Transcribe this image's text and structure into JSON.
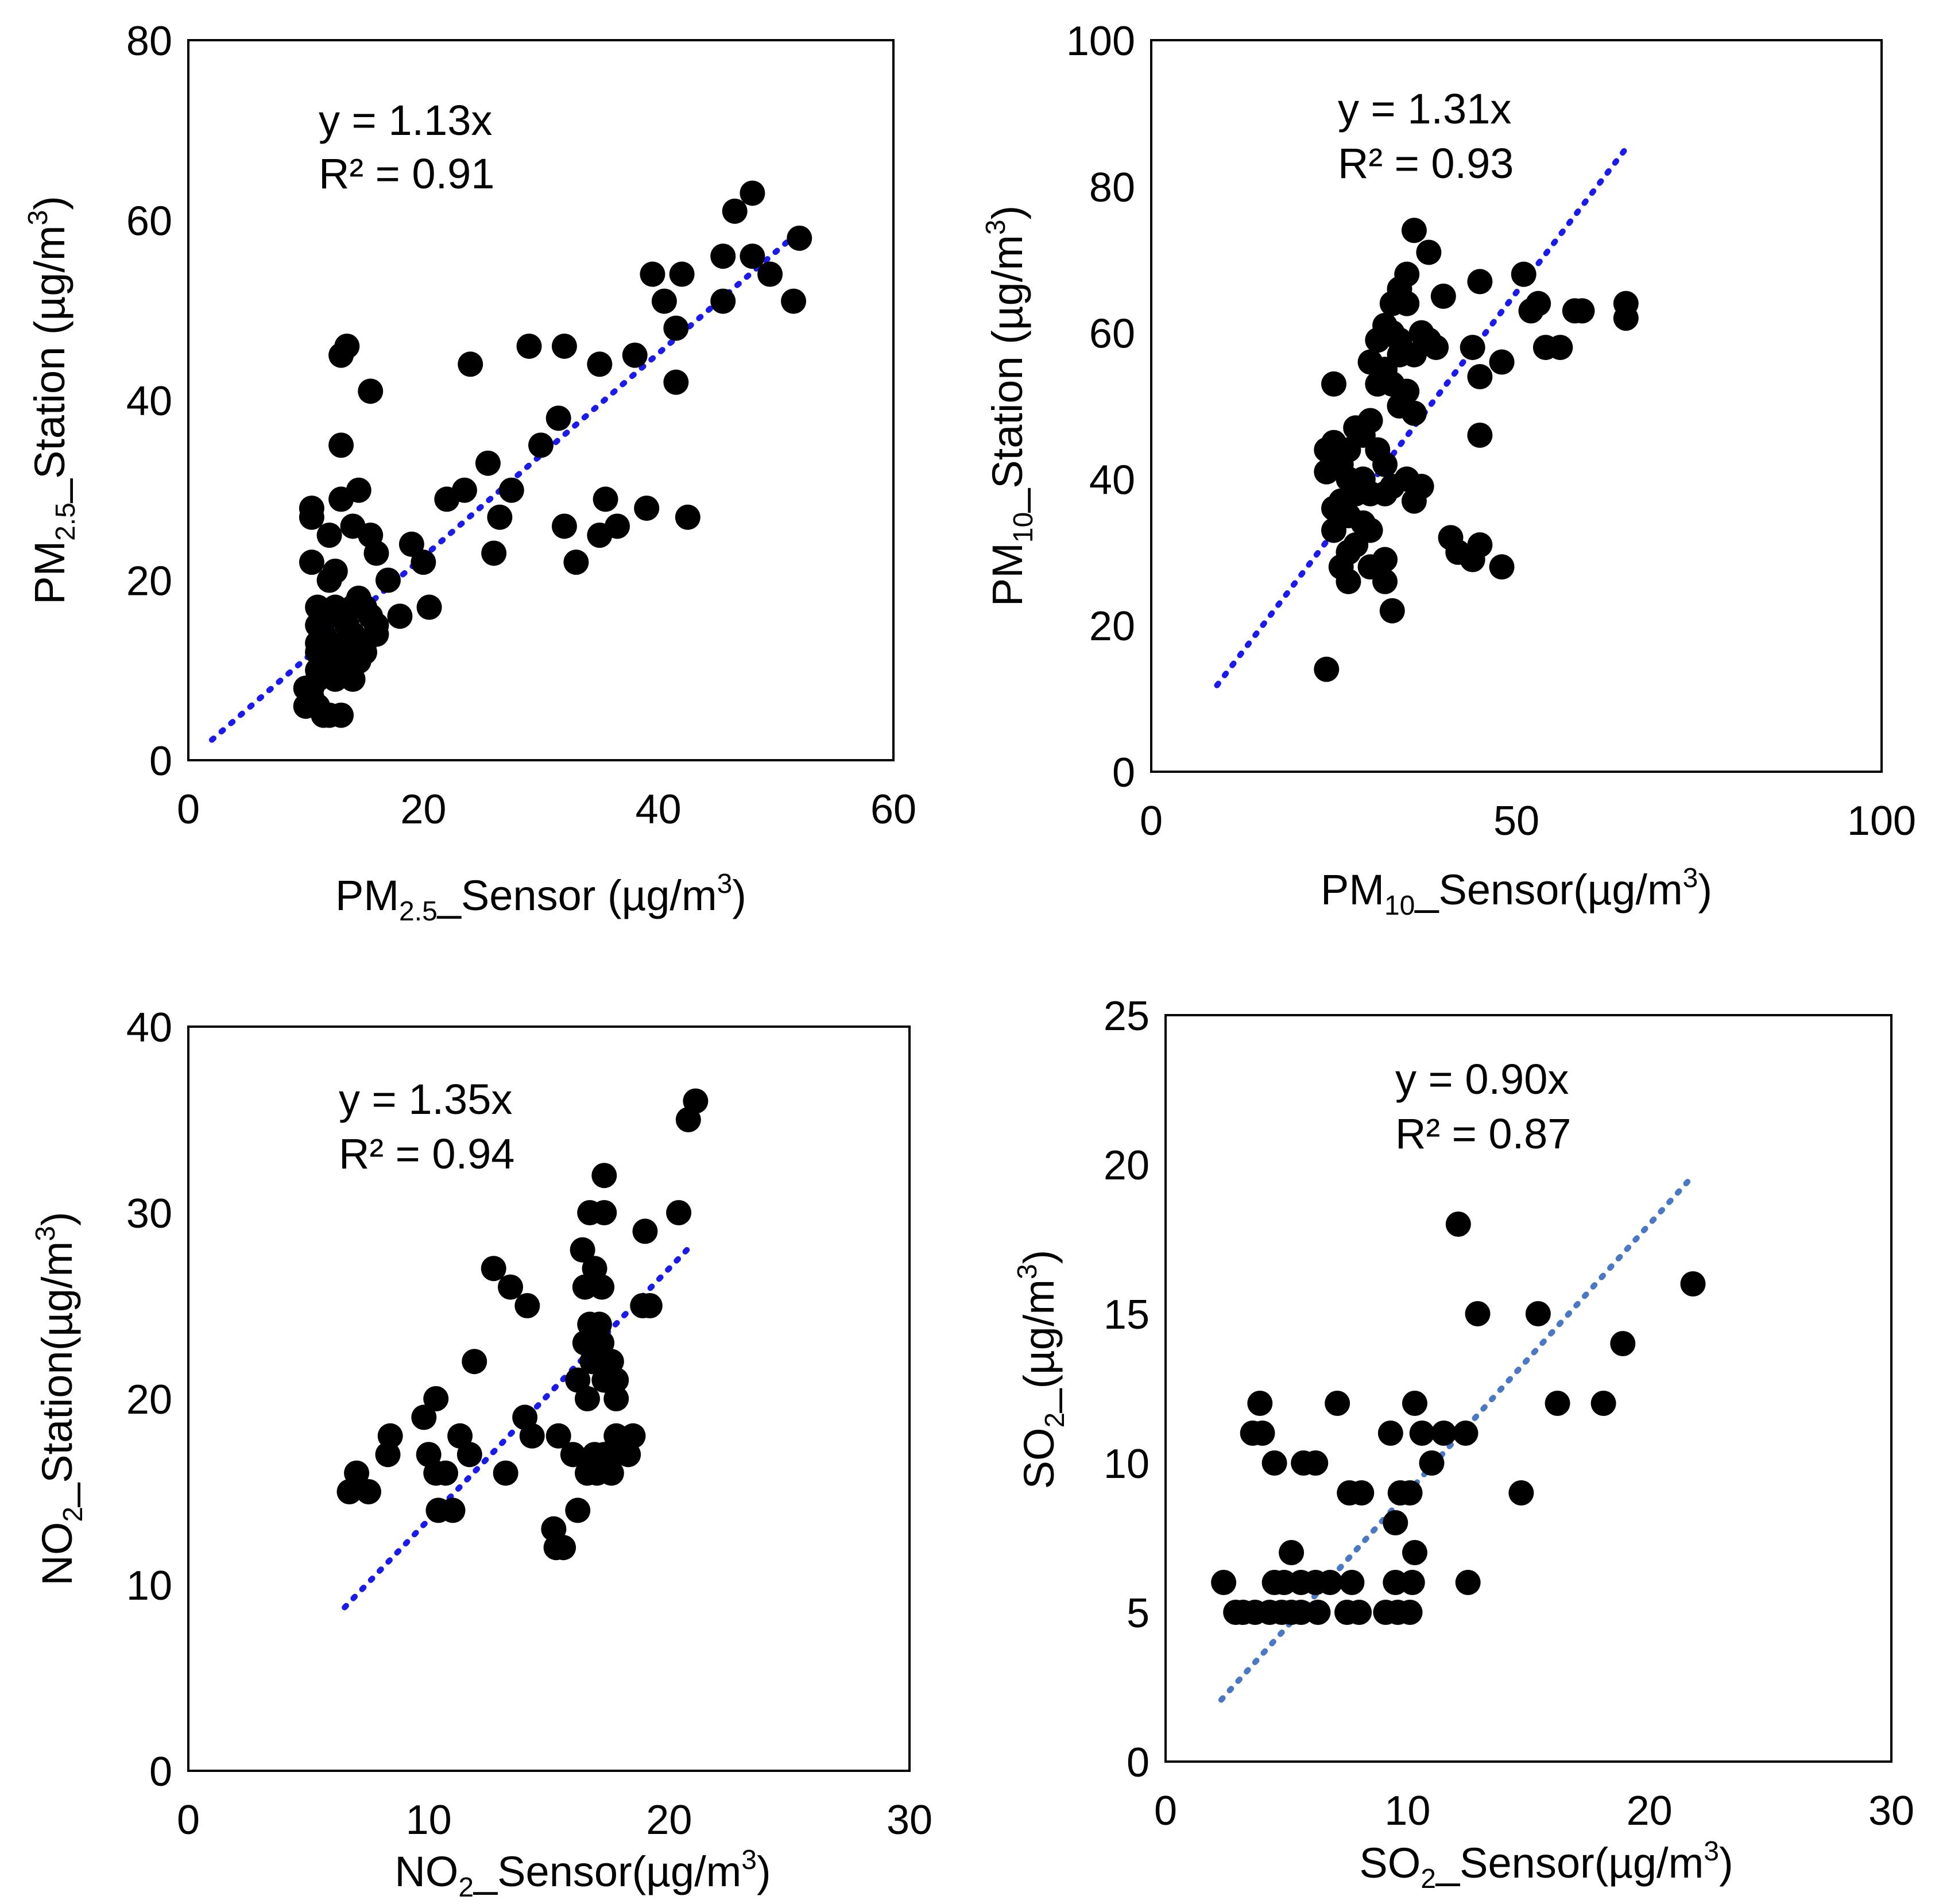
{
  "chart_data": [
    {
      "type": "scatter",
      "equation": "y = 1.13x",
      "r2": "R² = 0.91",
      "xlabel": {
        "base": "PM",
        "sub": "2.5",
        "rest": "_Sensor (µg/m",
        "sup": "3",
        "end": ")"
      },
      "ylabel": {
        "base": "PM",
        "sub": "2.5",
        "rest": "_Station (µg/m",
        "sup": "3",
        "end": ")"
      },
      "xlim": [
        0,
        60
      ],
      "ylim": [
        0,
        80
      ],
      "xticks": [
        "0",
        "20",
        "40",
        "60"
      ],
      "yticks": [
        "0",
        "20",
        "40",
        "60",
        "80"
      ],
      "trendline": {
        "x": [
          2,
          52
        ],
        "y": [
          2.26,
          58.76
        ],
        "color": "#1a1aee"
      },
      "marker_color": "#000000",
      "points": [
        [
          46.5,
          61
        ],
        [
          48,
          63
        ],
        [
          52,
          58
        ],
        [
          45.5,
          56
        ],
        [
          48,
          56
        ],
        [
          49.5,
          54
        ],
        [
          51.5,
          51
        ],
        [
          45.5,
          51
        ],
        [
          39.5,
          54
        ],
        [
          42,
          54
        ],
        [
          40.5,
          51
        ],
        [
          41.5,
          48
        ],
        [
          41.5,
          42
        ],
        [
          38,
          45
        ],
        [
          35,
          44
        ],
        [
          29,
          46
        ],
        [
          32,
          46
        ],
        [
          24,
          44
        ],
        [
          31.5,
          38
        ],
        [
          30,
          35
        ],
        [
          32,
          26
        ],
        [
          33,
          22
        ],
        [
          35,
          25
        ],
        [
          35.5,
          29
        ],
        [
          36.5,
          26
        ],
        [
          39,
          28
        ],
        [
          42.5,
          27
        ],
        [
          22,
          29
        ],
        [
          23.5,
          30
        ],
        [
          25.5,
          33
        ],
        [
          26.5,
          27
        ],
        [
          27.5,
          30
        ],
        [
          26,
          23
        ],
        [
          20,
          22
        ],
        [
          19,
          24
        ],
        [
          20.5,
          17
        ],
        [
          18,
          16
        ],
        [
          17,
          20
        ],
        [
          13,
          45
        ],
        [
          13.5,
          46
        ],
        [
          15.5,
          41
        ],
        [
          13,
          35
        ],
        [
          13,
          29
        ],
        [
          14.5,
          30
        ],
        [
          14,
          26
        ],
        [
          15.5,
          25
        ],
        [
          16,
          23
        ],
        [
          10.5,
          28
        ],
        [
          10.5,
          27
        ],
        [
          12,
          25
        ],
        [
          10.5,
          22
        ],
        [
          12,
          20
        ],
        [
          12.5,
          21
        ],
        [
          11,
          17
        ],
        [
          11,
          15
        ],
        [
          11.5,
          14
        ],
        [
          12,
          16
        ],
        [
          12.5,
          17
        ],
        [
          13,
          16
        ],
        [
          13.5,
          15
        ],
        [
          14,
          17
        ],
        [
          14.5,
          18
        ],
        [
          15,
          17
        ],
        [
          15.5,
          16
        ],
        [
          16,
          14
        ],
        [
          14,
          14
        ],
        [
          13.5,
          13
        ],
        [
          13,
          12
        ],
        [
          12.5,
          12
        ],
        [
          12,
          11
        ],
        [
          11.5,
          12
        ],
        [
          11,
          12
        ],
        [
          11,
          13
        ],
        [
          14.5,
          11
        ],
        [
          15,
          12
        ],
        [
          14,
          9
        ],
        [
          12.5,
          9
        ],
        [
          12,
          10
        ],
        [
          11,
          9
        ],
        [
          10.5,
          8
        ],
        [
          10,
          8
        ],
        [
          10,
          6
        ],
        [
          10.5,
          7
        ],
        [
          11,
          6
        ],
        [
          11.5,
          5
        ],
        [
          12,
          5
        ],
        [
          13,
          5
        ],
        [
          11,
          10
        ],
        [
          12,
          13
        ],
        [
          13,
          10
        ],
        [
          15,
          13
        ],
        [
          16,
          15
        ]
      ]
    },
    {
      "type": "scatter",
      "equation": "y = 1.31x",
      "r2": "R² = 0.93",
      "xlabel": {
        "base": "PM",
        "sub": "10",
        "rest": "_Sensor(µg/m",
        "sup": "3",
        "end": ")"
      },
      "ylabel": {
        "base": "PM",
        "sub": "10",
        "rest": "_Station (µg/m",
        "sup": "3",
        "end": ")"
      },
      "xlim": [
        0,
        100
      ],
      "ylim": [
        0,
        100
      ],
      "xticks": [
        "0",
        "50",
        "100"
      ],
      "yticks": [
        "0",
        "20",
        "40",
        "60",
        "80",
        "100"
      ],
      "trendline": {
        "x": [
          9,
          65
        ],
        "y": [
          11.8,
          85.2
        ],
        "color": "#1a1aee"
      },
      "marker_color": "#000000",
      "points": [
        [
          36,
          74
        ],
        [
          38,
          71
        ],
        [
          35,
          68
        ],
        [
          34,
          66
        ],
        [
          33,
          64
        ],
        [
          35,
          64
        ],
        [
          51,
          68
        ],
        [
          45,
          67
        ],
        [
          40,
          65
        ],
        [
          52,
          63
        ],
        [
          53,
          64
        ],
        [
          58,
          63
        ],
        [
          59,
          63
        ],
        [
          65,
          64
        ],
        [
          65,
          62
        ],
        [
          54,
          58
        ],
        [
          56,
          58
        ],
        [
          48,
          56
        ],
        [
          44,
          58
        ],
        [
          45,
          54
        ],
        [
          32,
          61
        ],
        [
          33,
          60
        ],
        [
          31,
          59
        ],
        [
          34,
          59
        ],
        [
          37,
          60
        ],
        [
          38,
          59
        ],
        [
          39,
          58
        ],
        [
          36,
          57
        ],
        [
          34,
          57
        ],
        [
          30,
          56
        ],
        [
          32,
          55
        ],
        [
          33,
          53
        ],
        [
          35,
          52
        ],
        [
          31,
          53
        ],
        [
          34,
          50
        ],
        [
          36,
          49
        ],
        [
          30,
          48
        ],
        [
          28,
          47
        ],
        [
          29,
          46
        ],
        [
          31,
          44
        ],
        [
          25,
          53
        ],
        [
          24,
          44
        ],
        [
          25,
          45
        ],
        [
          27,
          44
        ],
        [
          26,
          42
        ],
        [
          24,
          41
        ],
        [
          27,
          40
        ],
        [
          29,
          40
        ],
        [
          32,
          42
        ],
        [
          33,
          39
        ],
        [
          32,
          38
        ],
        [
          30,
          38
        ],
        [
          28,
          38
        ],
        [
          26,
          37
        ],
        [
          25,
          36
        ],
        [
          27,
          35
        ],
        [
          29,
          34
        ],
        [
          30,
          33
        ],
        [
          28,
          31
        ],
        [
          27,
          30
        ],
        [
          26,
          28
        ],
        [
          27,
          26
        ],
        [
          32,
          29
        ],
        [
          32,
          26
        ],
        [
          30,
          28
        ],
        [
          33,
          22
        ],
        [
          24,
          14
        ],
        [
          37,
          39
        ],
        [
          36,
          37
        ],
        [
          45,
          46
        ],
        [
          41,
          32
        ],
        [
          42,
          30
        ],
        [
          44,
          29
        ],
        [
          45,
          31
        ],
        [
          48,
          28
        ],
        [
          25,
          33
        ],
        [
          35,
          40
        ]
      ]
    },
    {
      "type": "scatter",
      "equation": "y = 1.35x",
      "r2": "R² = 0.94",
      "xlabel": {
        "base": "NO",
        "sub": "2",
        "rest": "_Sensor(µg/m",
        "sup": "3",
        "end": ")"
      },
      "ylabel": {
        "base": "NO",
        "sub": "2",
        "rest": "_Station(µg/m",
        "sup": "3",
        "end": ")"
      },
      "xlim": [
        0,
        30
      ],
      "ylim": [
        0,
        40
      ],
      "xticks": [
        "0",
        "10",
        "20",
        "30"
      ],
      "yticks": [
        "0",
        "10",
        "20",
        "30",
        "40"
      ],
      "trendline": {
        "x": [
          6.5,
          21
        ],
        "y": [
          8.78,
          28.35
        ],
        "color": "#1a1aee"
      },
      "marker_color": "#000000",
      "points": [
        [
          21.1,
          36
        ],
        [
          20.8,
          35
        ],
        [
          20.4,
          30
        ],
        [
          19,
          29
        ],
        [
          17.3,
          32
        ],
        [
          16.7,
          30
        ],
        [
          17.3,
          30
        ],
        [
          16.4,
          28
        ],
        [
          16.9,
          27
        ],
        [
          16.5,
          26
        ],
        [
          17.2,
          26
        ],
        [
          19.2,
          25
        ],
        [
          18.9,
          25
        ],
        [
          16.7,
          24
        ],
        [
          17.1,
          24
        ],
        [
          16.5,
          23
        ],
        [
          17.2,
          23
        ],
        [
          17.6,
          22
        ],
        [
          16.8,
          22
        ],
        [
          17.3,
          21
        ],
        [
          17.8,
          21
        ],
        [
          16.2,
          21
        ],
        [
          16.6,
          20
        ],
        [
          17.8,
          20
        ],
        [
          12.7,
          27
        ],
        [
          13.4,
          26
        ],
        [
          14.1,
          25
        ],
        [
          10.3,
          20
        ],
        [
          9.8,
          19
        ],
        [
          11.9,
          22
        ],
        [
          14.0,
          19
        ],
        [
          14.3,
          18
        ],
        [
          15.4,
          18
        ],
        [
          16.0,
          17
        ],
        [
          16.9,
          17
        ],
        [
          17.7,
          17
        ],
        [
          18.3,
          17
        ],
        [
          18.5,
          18
        ],
        [
          17.8,
          18
        ],
        [
          17.0,
          16
        ],
        [
          17.3,
          17
        ],
        [
          16.6,
          16
        ],
        [
          17.6,
          16
        ],
        [
          8.4,
          18
        ],
        [
          8.3,
          17
        ],
        [
          10.0,
          17
        ],
        [
          11.3,
          18
        ],
        [
          11.7,
          17
        ],
        [
          10.3,
          16
        ],
        [
          10.7,
          16
        ],
        [
          13.2,
          16
        ],
        [
          10.4,
          14
        ],
        [
          11.0,
          14
        ],
        [
          16.2,
          14
        ],
        [
          15.2,
          13
        ],
        [
          15.3,
          12
        ],
        [
          15.6,
          12
        ],
        [
          6.7,
          15
        ],
        [
          7.0,
          16
        ],
        [
          7.5,
          15
        ]
      ]
    },
    {
      "type": "scatter",
      "equation": "y = 0.90x",
      "r2": "R² = 0.87",
      "xlabel": {
        "base": "SO",
        "sub": "2",
        "rest": "_Sensor(µg/m",
        "sup": "3",
        "end": ")"
      },
      "ylabel": {
        "base": "SO",
        "sub": "2",
        "rest": "_(µg/m",
        "sup": "3",
        "end": ")"
      },
      "xlim": [
        0,
        30
      ],
      "ylim": [
        0,
        25
      ],
      "xticks": [
        "0",
        "10",
        "20",
        "30"
      ],
      "yticks": [
        "0",
        "5",
        "10",
        "15",
        "20",
        "25"
      ],
      "trendline": {
        "x": [
          2.3,
          21.6
        ],
        "y": [
          2.07,
          19.44
        ],
        "color": "#4a78c4"
      },
      "marker_color": "#000000",
      "points": [
        [
          12.1,
          18
        ],
        [
          21.8,
          16
        ],
        [
          12.9,
          15
        ],
        [
          15.4,
          15
        ],
        [
          18.9,
          14
        ],
        [
          16.2,
          12
        ],
        [
          18.1,
          12
        ],
        [
          7.1,
          12
        ],
        [
          10.3,
          12
        ],
        [
          3.9,
          12
        ],
        [
          3.6,
          11
        ],
        [
          4.0,
          11
        ],
        [
          9.3,
          11
        ],
        [
          10.6,
          11
        ],
        [
          11.5,
          11
        ],
        [
          12.4,
          11
        ],
        [
          11.0,
          10
        ],
        [
          4.5,
          10
        ],
        [
          5.7,
          10
        ],
        [
          6.2,
          10
        ],
        [
          7.6,
          9
        ],
        [
          8.1,
          9
        ],
        [
          9.7,
          9
        ],
        [
          10.1,
          9
        ],
        [
          14.7,
          9
        ],
        [
          9.5,
          8
        ],
        [
          10.3,
          7
        ],
        [
          5.2,
          7
        ],
        [
          2.4,
          6
        ],
        [
          4.5,
          6
        ],
        [
          4.9,
          6
        ],
        [
          5.6,
          6
        ],
        [
          6.2,
          6
        ],
        [
          6.8,
          6
        ],
        [
          7.7,
          6
        ],
        [
          9.5,
          6
        ],
        [
          10.2,
          6
        ],
        [
          12.5,
          6
        ],
        [
          2.9,
          5
        ],
        [
          3.2,
          5
        ],
        [
          3.7,
          5
        ],
        [
          4.3,
          5
        ],
        [
          4.8,
          5
        ],
        [
          5.2,
          5
        ],
        [
          5.6,
          5
        ],
        [
          6.3,
          5
        ],
        [
          7.5,
          5
        ],
        [
          8.0,
          5
        ],
        [
          9.1,
          5
        ],
        [
          9.6,
          5
        ],
        [
          10.1,
          5
        ]
      ]
    }
  ]
}
